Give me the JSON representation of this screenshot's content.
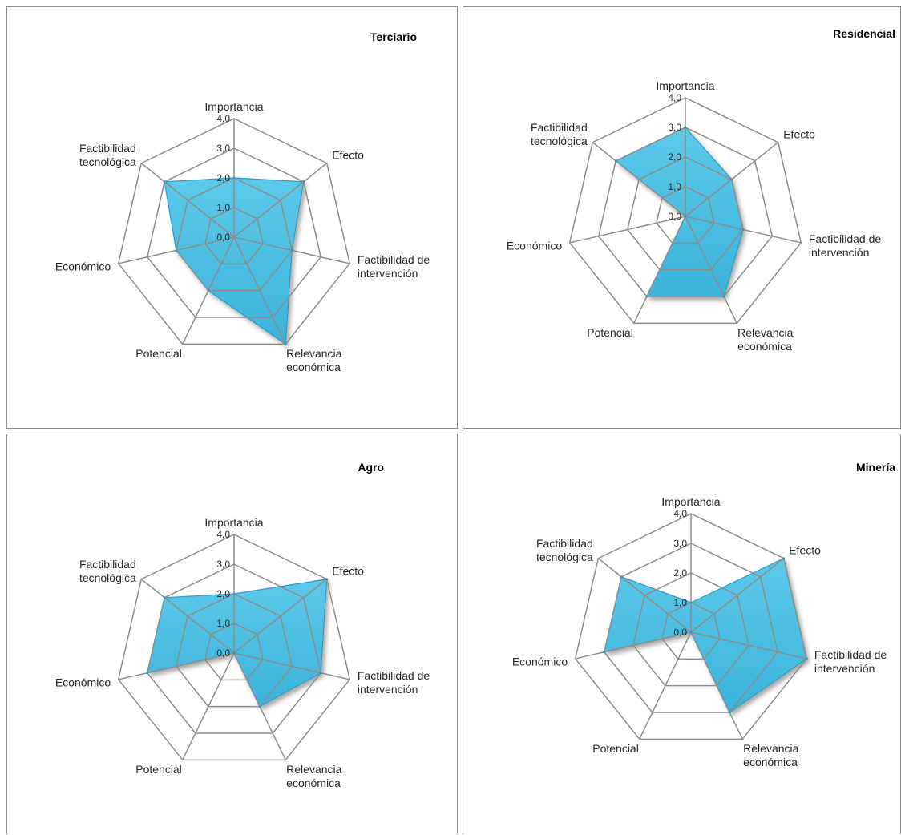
{
  "chart_data": [
    {
      "type": "radar",
      "title": "Terciario",
      "categories": [
        "Importancia",
        "Efecto",
        "Factibilidad de intervención",
        "Relevancia económica",
        "Potencial",
        "Económico",
        "Factibilidad tecnológica"
      ],
      "category_lines": [
        [
          "Importancia"
        ],
        [
          "Efecto"
        ],
        [
          "Factibilidad de",
          "intervención"
        ],
        [
          "Relevancia",
          "económica"
        ],
        [
          "Potencial"
        ],
        [
          "Económico"
        ],
        [
          "Factibilidad",
          "tecnológica"
        ]
      ],
      "values": [
        2.0,
        3.0,
        2.0,
        4.0,
        2.0,
        2.0,
        3.0
      ],
      "tick_labels": [
        "0,0",
        "1,0",
        "2,0",
        "3,0",
        "4,0"
      ],
      "rlim": [
        0,
        4
      ],
      "color": "#3bb3da"
    },
    {
      "type": "radar",
      "title": "Residencial",
      "categories": [
        "Importancia",
        "Efecto",
        "Factibilidad de intervención",
        "Relevancia económica",
        "Potencial",
        "Económico",
        "Factibilidad tecnológica"
      ],
      "category_lines": [
        [
          "Importancia"
        ],
        [
          "Efecto"
        ],
        [
          "Factibilidad de",
          "intervención"
        ],
        [
          "Relevancia",
          "económica"
        ],
        [
          "Potencial"
        ],
        [
          "Económico"
        ],
        [
          "Factibilidad",
          "tecnológica"
        ]
      ],
      "values": [
        3.0,
        2.0,
        2.0,
        3.0,
        3.0,
        0.0,
        3.0
      ],
      "tick_labels": [
        "0,0",
        "1,0",
        "2,0",
        "3,0",
        "4,0"
      ],
      "rlim": [
        0,
        4
      ],
      "color": "#3bb3da"
    },
    {
      "type": "radar",
      "title": "Agro",
      "categories": [
        "Importancia",
        "Efecto",
        "Factibilidad de intervención",
        "Relevancia económica",
        "Potencial",
        "Económico",
        "Factibilidad tecnológica"
      ],
      "category_lines": [
        [
          "Importancia"
        ],
        [
          "Efecto"
        ],
        [
          "Factibilidad de",
          "intervención"
        ],
        [
          "Relevancia",
          "económica"
        ],
        [
          "Potencial"
        ],
        [
          "Económico"
        ],
        [
          "Factibilidad",
          "tecnológica"
        ]
      ],
      "values": [
        2.0,
        4.0,
        3.0,
        2.0,
        0.0,
        3.0,
        3.0
      ],
      "tick_labels": [
        "0,0",
        "1,0",
        "2,0",
        "3,0",
        "4,0"
      ],
      "rlim": [
        0,
        4
      ],
      "color": "#3bb3da"
    },
    {
      "type": "radar",
      "title": "Minería",
      "categories": [
        "Importancia",
        "Efecto",
        "Factibilidad de intervención",
        "Relevancia económica",
        "Potencial",
        "Económico",
        "Factibilidad tecnológica"
      ],
      "category_lines": [
        [
          "Importancia"
        ],
        [
          "Efecto"
        ],
        [
          "Factibilidad de",
          "intervención"
        ],
        [
          "Relevancia",
          "económica"
        ],
        [
          "Potencial"
        ],
        [
          "Económico"
        ],
        [
          "Factibilidad",
          "tecnológica"
        ]
      ],
      "values": [
        1.0,
        4.0,
        4.0,
        3.0,
        0.0,
        3.0,
        3.0
      ],
      "tick_labels": [
        "0,0",
        "1,0",
        "2,0",
        "3,0",
        "4,0"
      ],
      "rlim": [
        0,
        4
      ],
      "color": "#3bb3da"
    }
  ]
}
